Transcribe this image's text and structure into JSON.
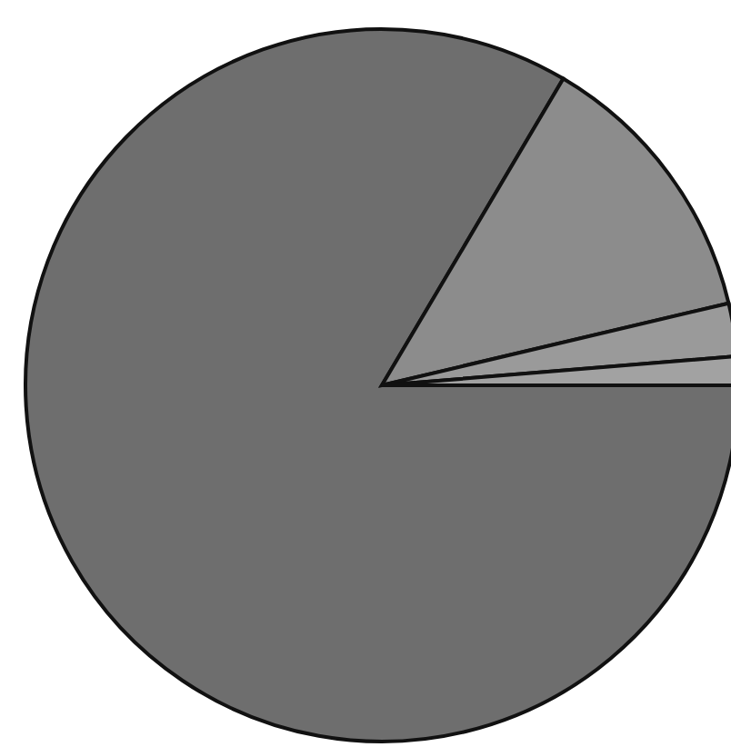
{
  "chart_data": {
    "type": "pie",
    "categories": [
      null,
      null,
      null,
      null
    ],
    "values": [
      83.5,
      12.8,
      2.4,
      1.3
    ],
    "colors": [
      "#6e6e6e",
      "#8c8c8c",
      "#9a9a9a",
      "#a2a2a2"
    ]
  }
}
